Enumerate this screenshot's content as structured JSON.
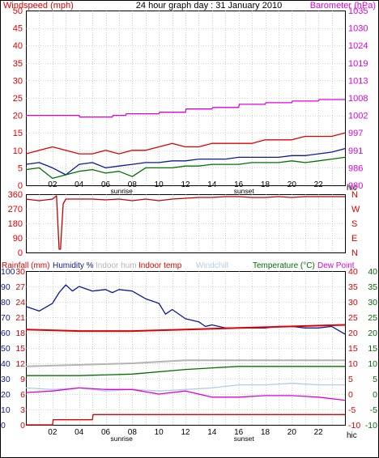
{
  "title": "24 hour graph day : 31 January 2010",
  "colors": {
    "red": "#e00000",
    "dark_red": "#c00000",
    "blue": "#0a1a9a",
    "green": "#007000",
    "magenta": "#dd00dd",
    "grey": "#b4b4b4",
    "light_blue": "#b0cde8",
    "grid": "#aaaaaa",
    "frame": "#000000"
  },
  "x_axis": {
    "hour_labels": [
      "02",
      "04",
      "06",
      "08",
      "10",
      "12",
      "14",
      "16",
      "18",
      "20",
      "22"
    ],
    "last_label": "hic",
    "sunrise_label": "sunrise",
    "sunset_label": "sunset"
  },
  "panel_top": {
    "left_title": "Windspeed (mph)",
    "right_title": "Barometer (hPa)",
    "left_ticks": [
      "0",
      "5",
      "10",
      "15",
      "20",
      "25",
      "30",
      "35",
      "40",
      "45",
      "50"
    ],
    "right_ticks": [
      "980",
      "986",
      "991",
      "997",
      "1002",
      "1008",
      "1013",
      "1019",
      "1024",
      "1030",
      "1035"
    ]
  },
  "panel_mid": {
    "left_ticks": [
      "0",
      "90",
      "180",
      "270",
      "360"
    ],
    "right_ticks": [
      "N",
      "W",
      "S",
      "E",
      "N"
    ]
  },
  "panel_bottom": {
    "legend": [
      "Rainfall (mm)",
      "Humidity %",
      "Indoor hum",
      "Indoor temp",
      "Windchill",
      "Temperature (°C)",
      "Dew Point"
    ],
    "rain_ticks": [
      "0",
      "3",
      "6",
      "9",
      "12",
      "15",
      "18",
      "21",
      "24",
      "27",
      "30"
    ],
    "hum_ticks": [
      "0",
      "10",
      "20",
      "30",
      "40",
      "50",
      "60",
      "70",
      "80",
      "90",
      "100"
    ],
    "temp_ticks_right": [
      "-10",
      "-5",
      "0",
      "5",
      "10",
      "15",
      "20",
      "25",
      "30",
      "35",
      "40"
    ],
    "temp_ticks_left": [
      "-10",
      "-5",
      "0",
      "5",
      "10",
      "15",
      "20",
      "25",
      "30",
      "35",
      "40"
    ]
  },
  "chart_data": [
    {
      "type": "line",
      "x_unit": "hour of day",
      "xlim": [
        0,
        24
      ],
      "ylim_left": [
        0,
        50
      ],
      "ylim_right": [
        980,
        1035
      ],
      "series": [
        {
          "name": "Windspeed (mph)",
          "axis": "left",
          "color": "red",
          "x": [
            0,
            1,
            2,
            3,
            4,
            5,
            6,
            7,
            8,
            9,
            10,
            11,
            12,
            13,
            14,
            15,
            16,
            17,
            18,
            19,
            20,
            21,
            22,
            23,
            24
          ],
          "y": [
            9,
            10,
            11,
            10,
            9,
            9,
            10,
            9,
            10,
            10,
            11,
            12,
            11,
            11,
            12,
            12,
            12,
            12,
            13,
            13,
            13,
            14,
            14,
            14,
            15
          ]
        },
        {
          "name": "Barometer (hPa)",
          "axis": "right",
          "color": "magenta",
          "x": [
            0,
            4,
            4.05,
            6.5,
            6.55,
            7.5,
            7.55,
            10,
            10.05,
            12,
            12.05,
            14,
            14.05,
            16,
            16.05,
            18,
            18.05,
            20,
            20.05,
            22,
            22.05,
            24
          ],
          "y": [
            1002,
            1002,
            1001.5,
            1001.5,
            1002,
            1002,
            1002.5,
            1002.5,
            1003,
            1003,
            1004,
            1004,
            1004.5,
            1004.5,
            1005.5,
            1005.5,
            1006,
            1006,
            1006.5,
            1006.5,
            1007,
            1007
          ]
        },
        {
          "name": "",
          "axis": "left",
          "color": "blue",
          "x": [
            0,
            1,
            2,
            3,
            4,
            5,
            6,
            7,
            8,
            9,
            10,
            11,
            12,
            13,
            14,
            15,
            16,
            17,
            18,
            19,
            20,
            21,
            22,
            23,
            24
          ],
          "y": [
            6,
            6.5,
            5,
            3,
            6,
            6.5,
            5,
            5.5,
            6,
            6.5,
            6.5,
            7,
            7,
            7.5,
            7.5,
            7.5,
            8,
            8,
            8,
            8,
            8.5,
            8.5,
            9,
            9.5,
            10.5
          ]
        },
        {
          "name": "",
          "axis": "left",
          "color": "green",
          "x": [
            0,
            1,
            2,
            3,
            4,
            5,
            6,
            7,
            8,
            9,
            10,
            11,
            12,
            13,
            14,
            15,
            16,
            17,
            18,
            19,
            20,
            21,
            22,
            23,
            24
          ],
          "y": [
            4.5,
            5,
            2,
            3,
            4,
            4.5,
            3.5,
            4,
            2.5,
            5,
            5,
            5,
            5.5,
            5.5,
            6,
            6,
            6,
            6.5,
            6.5,
            6.5,
            7,
            6.5,
            7,
            7.5,
            8
          ]
        }
      ]
    },
    {
      "type": "line",
      "x_unit": "hour of day",
      "xlim": [
        0,
        24
      ],
      "ylim": [
        0,
        360
      ],
      "series": [
        {
          "name": "",
          "color": "dark_red",
          "x": [
            0,
            1,
            2,
            2.3,
            2.5,
            2.6,
            2.8,
            3,
            4,
            5,
            6,
            7,
            8,
            9,
            10,
            11,
            12,
            13,
            14,
            15,
            16,
            17,
            18,
            19,
            20,
            21,
            22,
            23,
            24
          ],
          "y": [
            330,
            320,
            330,
            350,
            20,
            20,
            300,
            330,
            330,
            330,
            325,
            330,
            320,
            330,
            320,
            330,
            335,
            340,
            340,
            345,
            345,
            340,
            340,
            345,
            340,
            345,
            345,
            345,
            345
          ]
        }
      ]
    },
    {
      "type": "line",
      "x_unit": "hour of day",
      "xlim": [
        0,
        24
      ],
      "ylim_humidity": [
        0,
        100
      ],
      "ylim_rain": [
        0,
        30
      ],
      "ylim_temp": [
        -10,
        40
      ],
      "series": [
        {
          "name": "Humidity %",
          "axis": "humidity",
          "color": "blue",
          "x": [
            0,
            1,
            2,
            2.5,
            3,
            3.5,
            4,
            5,
            6,
            6.5,
            7,
            8,
            9,
            10,
            10.5,
            11,
            12,
            13,
            13.5,
            14,
            15,
            16,
            17,
            18,
            19,
            20,
            21,
            22,
            23,
            24
          ],
          "y": [
            77,
            74,
            79,
            86,
            91,
            87,
            90,
            87,
            88,
            86,
            88,
            87,
            82,
            79,
            72,
            75,
            69,
            67,
            64,
            65,
            63,
            63,
            63,
            63,
            64,
            64,
            63,
            63,
            64,
            59
          ]
        },
        {
          "name": "Rainfall (mm)",
          "axis": "rain",
          "color": "red",
          "x": [
            0,
            2,
            2.05,
            5,
            5.05,
            24
          ],
          "y": [
            0,
            0,
            1,
            1,
            2,
            2
          ]
        },
        {
          "name": "Indoor temp",
          "axis": "temp",
          "color": "red",
          "x": [
            0,
            4,
            8,
            12,
            16,
            20,
            24
          ],
          "y": [
            21,
            20.5,
            20.5,
            21,
            21.5,
            22,
            22.5
          ]
        },
        {
          "name": "Indoor hum",
          "axis": "humidity",
          "color": "grey",
          "x": [
            0,
            4,
            8,
            12,
            16,
            20,
            24
          ],
          "y": [
            38,
            39,
            40,
            42,
            42,
            42,
            42
          ]
        },
        {
          "name": "Temperature (°C)",
          "axis": "temp",
          "color": "green",
          "x": [
            0,
            4,
            8,
            12,
            16,
            20,
            24
          ],
          "y": [
            6,
            6,
            6.5,
            8,
            9,
            9,
            9
          ]
        },
        {
          "name": "Windchill",
          "axis": "temp",
          "color": "light_blue",
          "x": [
            0,
            2,
            4,
            6,
            8,
            10,
            12,
            14,
            16,
            18,
            20,
            22,
            24
          ],
          "y": [
            2,
            1.5,
            2,
            1,
            1.5,
            1,
            1.5,
            2,
            3,
            3,
            3.5,
            3,
            3
          ]
        },
        {
          "name": "Dew Point",
          "axis": "temp",
          "color": "magenta",
          "x": [
            0,
            2,
            4,
            6,
            8,
            10,
            12,
            14,
            16,
            18,
            20,
            22,
            24
          ],
          "y": [
            0.5,
            1,
            2,
            1.5,
            1.5,
            0,
            1,
            -1,
            -1,
            -0.5,
            -0.5,
            -1,
            -2
          ]
        }
      ]
    }
  ]
}
